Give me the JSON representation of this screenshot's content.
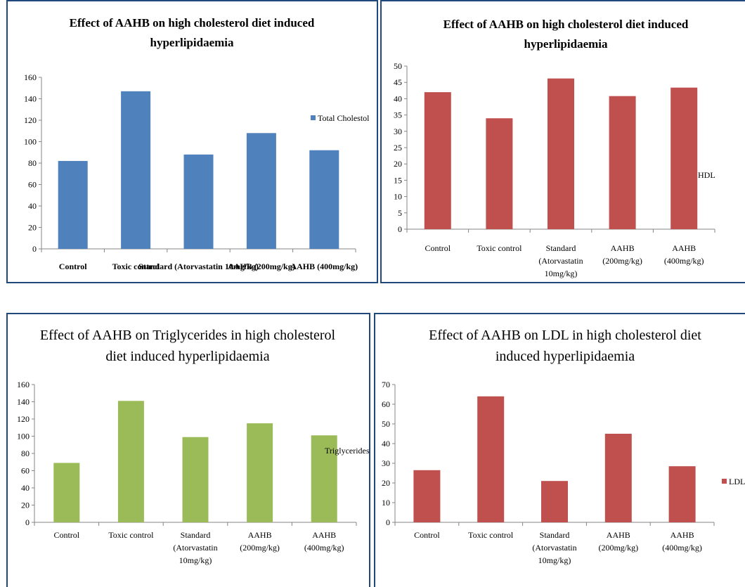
{
  "charts": [
    {
      "title_lines": [
        "Effect of AAHB on high cholesterol diet induced",
        "hyperlipidaemia"
      ],
      "chart_data": {
        "type": "bar",
        "title": "Effect of AAHB on high cholesterol diet induced hyperlipidaemia",
        "categories": [
          [
            "Control"
          ],
          [
            "Toxic control"
          ],
          [
            "Standard (Atorvastatin 10mg/kg)"
          ],
          [
            "AAHB (200mg/kg)"
          ],
          [
            "AAHB (400mg/kg)"
          ]
        ],
        "series": [
          {
            "name": "Total Cholestol",
            "values": [
              82,
              147,
              88,
              108,
              92
            ]
          }
        ],
        "ylim": [
          0,
          160
        ],
        "yticks": [
          0,
          20,
          40,
          60,
          80,
          100,
          120,
          140,
          160
        ],
        "color": "#4f81bd",
        "grid": false,
        "legend": "right"
      }
    },
    {
      "title_lines": [
        "Effect of AAHB on high cholesterol diet induced",
        "hyperlipidaemia"
      ],
      "chart_data": {
        "type": "bar",
        "title": "Effect of AAHB on high cholesterol diet induced hyperlipidaemia",
        "categories": [
          [
            "Control"
          ],
          [
            "Toxic control"
          ],
          [
            "Standard",
            "(Atorvastatin",
            "10mg/kg)"
          ],
          [
            "AAHB",
            "(200mg/kg)"
          ],
          [
            "AAHB",
            "(400mg/kg)"
          ]
        ],
        "series": [
          {
            "name": "HDL",
            "values": [
              42,
              34,
              46.2,
              40.8,
              43.4
            ]
          }
        ],
        "ylim": [
          0,
          50
        ],
        "yticks": [
          0,
          5,
          10,
          15,
          20,
          25,
          30,
          35,
          40,
          45,
          50
        ],
        "color": "#c0504d",
        "grid": false,
        "legend": "right"
      }
    },
    {
      "title_lines": [
        "Effect of AAHB on Triglycerides in high cholesterol",
        "diet induced hyperlipidaemia"
      ],
      "chart_data": {
        "type": "bar",
        "title": "Effect of AAHB on Triglycerides in high cholesterol diet induced hyperlipidaemia",
        "categories": [
          [
            "Control"
          ],
          [
            "Toxic control"
          ],
          [
            "Standard",
            "(Atorvastatin",
            "10mg/kg)"
          ],
          [
            "AAHB",
            "(200mg/kg)"
          ],
          [
            "AAHB",
            "(400mg/kg)"
          ]
        ],
        "series": [
          {
            "name": "Triglycerides",
            "values": [
              69,
              141,
              99,
              115,
              101
            ]
          }
        ],
        "ylim": [
          0,
          160
        ],
        "yticks": [
          0,
          20,
          40,
          60,
          80,
          100,
          120,
          140,
          160
        ],
        "color": "#9bbb59",
        "grid": false,
        "legend": "right"
      }
    },
    {
      "title_lines": [
        "Effect of AAHB on LDL in high cholesterol diet",
        "induced hyperlipidaemia"
      ],
      "chart_data": {
        "type": "bar",
        "title": "Effect of AAHB on LDL in high cholesterol diet induced hyperlipidaemia",
        "categories": [
          [
            "Control"
          ],
          [
            "Toxic control"
          ],
          [
            "Standard",
            "(Atorvastatin",
            "10mg/kg)"
          ],
          [
            "AAHB",
            "(200mg/kg)"
          ],
          [
            "AAHB",
            "(400mg/kg)"
          ]
        ],
        "series": [
          {
            "name": "LDL",
            "values": [
              26.5,
              64,
              21,
              45,
              28.5
            ]
          }
        ],
        "ylim": [
          0,
          70
        ],
        "yticks": [
          0,
          10,
          20,
          30,
          40,
          50,
          60,
          70
        ],
        "color": "#c0504d",
        "grid": false,
        "legend": "right"
      }
    }
  ]
}
